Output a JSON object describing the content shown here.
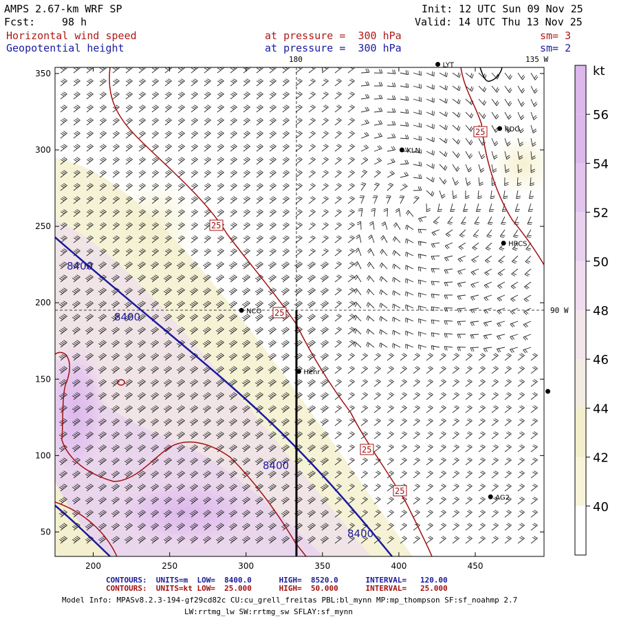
{
  "header": {
    "model": "AMPS 2.67-km WRF SP",
    "forecast_label": "Fcst:",
    "forecast_hours": "98 h",
    "init": "Init: 12 UTC Sun 09 Nov 25",
    "valid": "Valid: 14 UTC Thu 13 Nov 25"
  },
  "fields": [
    {
      "name": "Horizontal wind speed",
      "level": "at pressure =  300 hPa",
      "smoothing": "sm= 3"
    },
    {
      "name": "Geopotential height",
      "level": "at pressure =  300 hPa",
      "smoothing": "sm= 2"
    }
  ],
  "map": {
    "x_ticks": [
      "200",
      "250",
      "300",
      "350",
      "400",
      "450"
    ],
    "y_ticks": [
      "50",
      "100",
      "150",
      "200",
      "250",
      "300",
      "350"
    ],
    "meridian_labels": [
      "180",
      "135 W",
      "90 W"
    ],
    "stations": [
      {
        "name": "LYT",
        "x": 425.5,
        "y": 356
      },
      {
        "name": "RDG",
        "x": 466,
        "y": 314
      },
      {
        "name": "KLN",
        "x": 402,
        "y": 300
      },
      {
        "name": "HRCS",
        "x": 468.5,
        "y": 239
      },
      {
        "name": "NCO",
        "x": 297,
        "y": 195
      },
      {
        "name": "Henr",
        "x": 334.5,
        "y": 155
      },
      {
        "name": "",
        "x": 497.5,
        "y": 142
      },
      {
        "name": "AG2",
        "x": 460,
        "y": 73
      }
    ],
    "contour_labels": {
      "height": [
        "8400",
        "8400",
        "8400",
        "8400"
      ],
      "wind": [
        "25",
        "25",
        "25",
        "25",
        "25"
      ]
    }
  },
  "colorbar": {
    "unit": "kt",
    "labels": [
      "56",
      "54",
      "52",
      "50",
      "48",
      "46",
      "44",
      "42",
      "40"
    ],
    "colors": [
      "#dcb8ec",
      "#e2c4ee",
      "#e8d0ee",
      "#efdcee",
      "#f2e6ea",
      "#f3ece2",
      "#f3efcc",
      "#f7f4da",
      "#ffffff"
    ]
  },
  "footer": {
    "height_contours": "CONTOURS:  UNITS=m  LOW=  8400.0      HIGH=  8520.0      INTERVAL=   120.00",
    "wind_contours": "CONTOURS:  UNITS=kt LOW=  25.000      HIGH=  50.000      INTERVAL=   25.000",
    "model_info": "Model Info: MPASv8.2.3-194-gf29cd82c CU:cu_grell_freitas PBL:bl_mynn MP:mp_thompson SF:sf_noahmp 2.7",
    "model_info_2": "LW:rrtmg_lw SW:rrtmg_sw SFLAY:sf_mynn"
  }
}
